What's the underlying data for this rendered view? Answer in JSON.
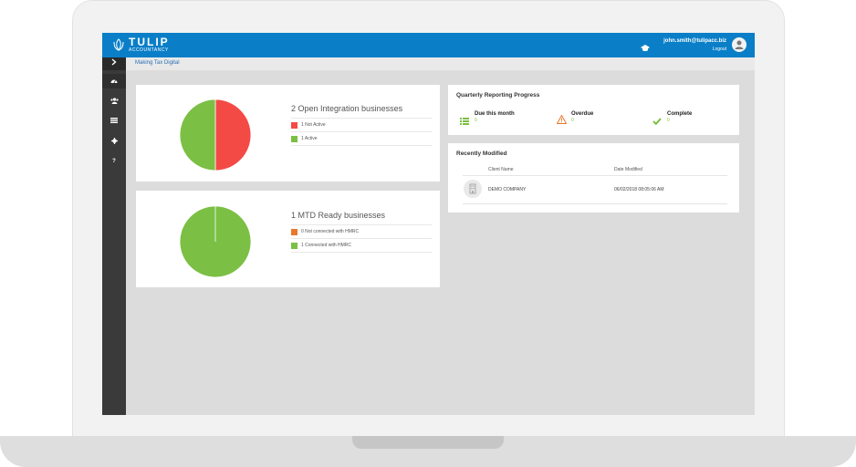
{
  "app": {
    "logo_name": "TULIP",
    "logo_sub": "ACCOUNTANCY",
    "user_email": "john.smith@tulipacc.biz",
    "logout_label": "Logout",
    "brand_color": "#0a7fc8"
  },
  "breadcrumb": "Making Tax Digital",
  "sidebar": {
    "toggle_icon": "chevron-right-icon",
    "items": [
      {
        "icon": "dashboard-icon",
        "label": "",
        "active": true
      },
      {
        "icon": "users-icon",
        "label": ""
      },
      {
        "icon": "list-icon",
        "label": ""
      },
      {
        "icon": "gear-icon",
        "label": ""
      },
      {
        "icon": "help-icon",
        "label": "?"
      }
    ]
  },
  "integration": {
    "title": "2 Open Integration businesses",
    "legend": [
      {
        "label": "1 Not Active",
        "color": "#f44a45",
        "value": 1
      },
      {
        "label": "1 Active",
        "color": "#7bbf44",
        "value": 1
      }
    ]
  },
  "mtd": {
    "title": "1 MTD Ready businesses",
    "legend": [
      {
        "label": "0 Not connected with HMRC",
        "color": "#e8782c",
        "value": 0
      },
      {
        "label": "1 Connected with HMRC",
        "color": "#7bbf44",
        "value": 1
      }
    ]
  },
  "quarterly": {
    "title": "Quarterly Reporting Progress",
    "items": [
      {
        "label": "Due this month",
        "value": "0",
        "icon": "list-icon",
        "color": "#7bbf44"
      },
      {
        "label": "Overdue",
        "value": "0",
        "icon": "warning-icon",
        "color": "#e8782c"
      },
      {
        "label": "Complete",
        "value": "0",
        "icon": "check-icon",
        "color": "#7bbf44"
      }
    ]
  },
  "recent": {
    "title": "Recently Modified",
    "columns": [
      "Client Name",
      "Date Modified"
    ],
    "rows": [
      {
        "client": "DEMO COMPANY",
        "date": "06/02/2018 08:05:06 AM",
        "icon": "building-icon"
      }
    ]
  }
}
